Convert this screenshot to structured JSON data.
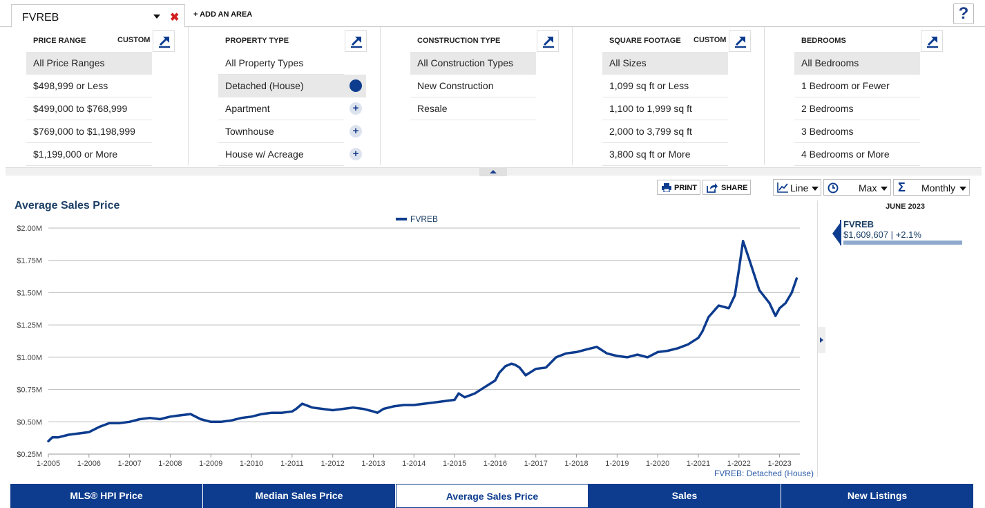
{
  "area": {
    "name": "FVREB",
    "close_glyph": "✖",
    "add_label": "+ ADD AN AREA",
    "help_label": "?"
  },
  "filters": [
    {
      "header": "PRICE RANGE",
      "custom": "CUSTOM",
      "items": [
        "All Price Ranges",
        "$498,999 or Less",
        "$499,000 to $768,999",
        "$769,000 to $1,198,999",
        "$1,199,000 or More"
      ],
      "selected": 0
    },
    {
      "header": "PROPERTY TYPE",
      "custom": "",
      "items": [
        "All Property Types",
        "Detached (House)",
        "Apartment",
        "Townhouse",
        "House w/ Acreage"
      ],
      "selected": 1
    },
    {
      "header": "CONSTRUCTION TYPE",
      "custom": "",
      "items": [
        "All Construction Types",
        "New Construction",
        "Resale"
      ],
      "selected": 0
    },
    {
      "header": "SQUARE FOOTAGE",
      "custom": "CUSTOM",
      "items": [
        "All Sizes",
        "1,099 sq ft or Less",
        "1,100 to 1,999 sq ft",
        "2,000 to 3,799 sq ft",
        "3,800 sq ft or More"
      ],
      "selected": 0
    },
    {
      "header": "BEDROOMS",
      "custom": "",
      "items": [
        "All Bedrooms",
        "1 Bedroom or Fewer",
        "2 Bedrooms",
        "3 Bedrooms",
        "4 Bedrooms or More"
      ],
      "selected": 0
    }
  ],
  "toolbar": {
    "print": "PRINT",
    "share": "SHARE",
    "chart_type": "Line",
    "range": "Max",
    "period": "Monthly"
  },
  "chart_title": "Average Sales Price",
  "footnote": "FVREB: Detached (House)",
  "side": {
    "date": "JUNE 2023",
    "name": "FVREB",
    "value": "$1,609,607 | +2.1%"
  },
  "tabs": [
    {
      "label": "MLS® HPI Price",
      "active": false
    },
    {
      "label": "Median Sales Price",
      "active": false
    },
    {
      "label": "Average Sales Price",
      "active": true
    },
    {
      "label": "Sales",
      "active": false
    },
    {
      "label": "New Listings",
      "active": false
    }
  ],
  "icons": {
    "expand": "expand-arrow-icon",
    "print": "printer-icon",
    "share": "share-icon",
    "line": "line-chart-icon",
    "clock": "clock-icon",
    "sigma": "sigma-icon"
  },
  "colors": {
    "brand": "#0d3c8e",
    "line": "#0d3c8e",
    "title": "#1c3f66",
    "close": "#d21f1f"
  },
  "chart_data": {
    "type": "line",
    "title": "Average Sales Price",
    "xlabel": "",
    "ylabel": "",
    "y_tick_labels": [
      "$0.25M",
      "$0.50M",
      "$0.75M",
      "$1.00M",
      "$1.25M",
      "$1.50M",
      "$1.75M",
      "$2.00M"
    ],
    "y_ticks": [
      0.25,
      0.5,
      0.75,
      1.0,
      1.25,
      1.5,
      1.75,
      2.0
    ],
    "ylim": [
      0.25,
      2.0
    ],
    "x_tick_labels": [
      "1-2005",
      "1-2006",
      "1-2007",
      "1-2008",
      "1-2009",
      "1-2010",
      "1-2011",
      "1-2012",
      "1-2013",
      "1-2014",
      "1-2015",
      "1-2016",
      "1-2017",
      "1-2018",
      "1-2019",
      "1-2020",
      "1-2021",
      "1-2022",
      "1-2023"
    ],
    "x_ticks": [
      2005,
      2006,
      2007,
      2008,
      2009,
      2010,
      2011,
      2012,
      2013,
      2014,
      2015,
      2016,
      2017,
      2018,
      2019,
      2020,
      2021,
      2022,
      2023
    ],
    "xlim": [
      2005,
      2023.5
    ],
    "grid": true,
    "legend": "top-center",
    "series": [
      {
        "name": "FVREB",
        "x": [
          2005.0,
          2005.1,
          2005.25,
          2005.5,
          2005.75,
          2006.0,
          2006.25,
          2006.5,
          2006.75,
          2007.0,
          2007.25,
          2007.5,
          2007.75,
          2008.0,
          2008.25,
          2008.5,
          2008.75,
          2009.0,
          2009.25,
          2009.5,
          2009.75,
          2010.0,
          2010.25,
          2010.5,
          2010.75,
          2011.0,
          2011.1,
          2011.25,
          2011.5,
          2011.75,
          2012.0,
          2012.25,
          2012.5,
          2012.75,
          2013.0,
          2013.1,
          2013.25,
          2013.5,
          2013.75,
          2014.0,
          2014.25,
          2014.5,
          2014.75,
          2015.0,
          2015.1,
          2015.25,
          2015.5,
          2015.75,
          2016.0,
          2016.1,
          2016.25,
          2016.4,
          2016.5,
          2016.6,
          2016.75,
          2017.0,
          2017.25,
          2017.5,
          2017.75,
          2018.0,
          2018.25,
          2018.5,
          2018.75,
          2019.0,
          2019.25,
          2019.5,
          2019.75,
          2020.0,
          2020.25,
          2020.5,
          2020.75,
          2021.0,
          2021.1,
          2021.25,
          2021.5,
          2021.75,
          2021.9,
          2022.0,
          2022.1,
          2022.25,
          2022.5,
          2022.75,
          2022.9,
          2023.0,
          2023.15,
          2023.3,
          2023.42
        ],
        "values": [
          0.35,
          0.38,
          0.38,
          0.4,
          0.41,
          0.42,
          0.46,
          0.49,
          0.49,
          0.5,
          0.52,
          0.53,
          0.52,
          0.54,
          0.55,
          0.56,
          0.52,
          0.5,
          0.5,
          0.51,
          0.53,
          0.54,
          0.56,
          0.57,
          0.57,
          0.58,
          0.6,
          0.64,
          0.61,
          0.6,
          0.59,
          0.6,
          0.61,
          0.6,
          0.58,
          0.57,
          0.6,
          0.62,
          0.63,
          0.63,
          0.64,
          0.65,
          0.66,
          0.67,
          0.72,
          0.69,
          0.72,
          0.77,
          0.82,
          0.88,
          0.93,
          0.95,
          0.94,
          0.92,
          0.86,
          0.91,
          0.92,
          1.0,
          1.03,
          1.04,
          1.06,
          1.08,
          1.03,
          1.01,
          1.0,
          1.02,
          1.0,
          1.04,
          1.05,
          1.07,
          1.1,
          1.15,
          1.2,
          1.31,
          1.4,
          1.38,
          1.48,
          1.68,
          1.9,
          1.76,
          1.52,
          1.42,
          1.32,
          1.38,
          1.42,
          1.5,
          1.61
        ]
      }
    ]
  }
}
